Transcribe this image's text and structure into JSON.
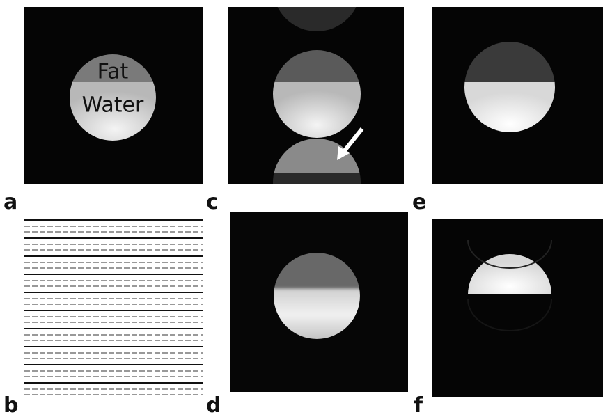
{
  "panels": [
    {
      "label": "a"
    },
    {
      "label": "b"
    },
    {
      "label": "c"
    },
    {
      "label": "d"
    },
    {
      "label": "e"
    },
    {
      "label": "f"
    }
  ],
  "annotations": {
    "fat": "Fat",
    "water": "Water"
  }
}
